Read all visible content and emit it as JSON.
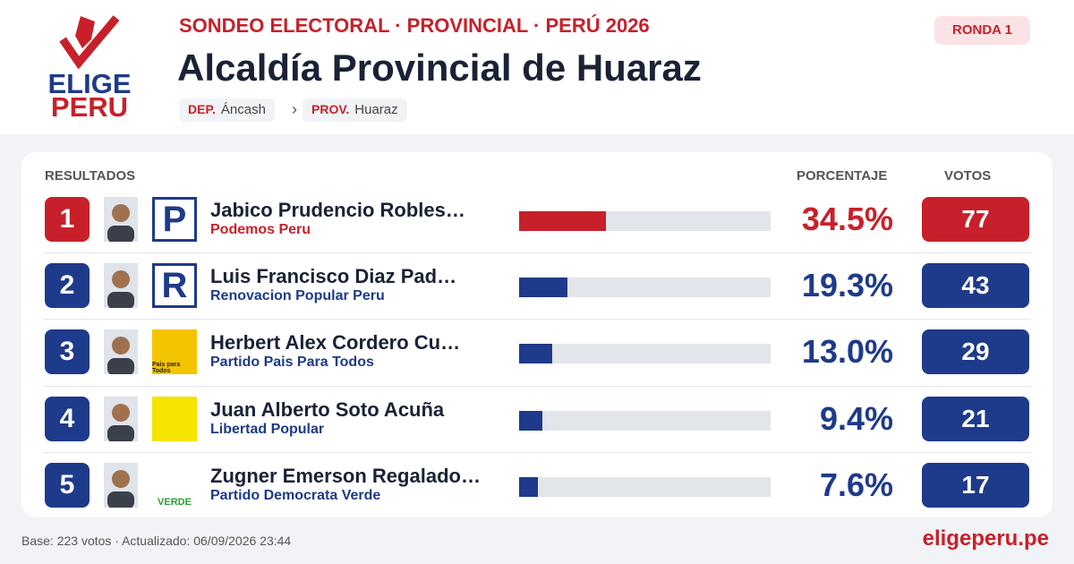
{
  "header": {
    "kicker": "SONDEO ELECTORAL · PROVINCIAL · PERÚ 2026",
    "title": "Alcaldía Provincial de Huaraz",
    "round": "RONDA 1",
    "breadcrumb": [
      {
        "key": "DEP.",
        "value": "Áncash"
      },
      {
        "key": "PROV.",
        "value": "Huaraz"
      }
    ],
    "separator": "›"
  },
  "logo": {
    "line1": "ELIGE",
    "line2": "PERU"
  },
  "results": {
    "heading": "RESULTADOS",
    "percent_heading": "PORCENTAJE",
    "votes_heading": "VOTOS",
    "rows": [
      {
        "rank": "1",
        "name": "Jabico Prudencio Robles…",
        "party": "Podemos Peru",
        "party_logo": "P",
        "percent": 34.5,
        "percent_label": "34.5%",
        "votes": "77",
        "color": "#c8202a"
      },
      {
        "rank": "2",
        "name": "Luis Francisco Diaz Pad…",
        "party": "Renovacion Popular Peru",
        "party_logo": "R",
        "percent": 19.3,
        "percent_label": "19.3%",
        "votes": "43",
        "color": "#1e3a8a"
      },
      {
        "rank": "3",
        "name": "Herbert Alex Cordero Cu…",
        "party": "Partido Pais Para Todos",
        "party_logo": "Pais para Todos",
        "percent": 13.0,
        "percent_label": "13.0%",
        "votes": "29",
        "color": "#1e3a8a"
      },
      {
        "rank": "4",
        "name": "Juan Alberto Soto Acuña",
        "party": "Libertad Popular",
        "party_logo": "",
        "percent": 9.4,
        "percent_label": "9.4%",
        "votes": "21",
        "color": "#1e3a8a"
      },
      {
        "rank": "5",
        "name": "Zugner Emerson Regalado…",
        "party": "Partido Democrata Verde",
        "party_logo": "VERDE",
        "percent": 7.6,
        "percent_label": "7.6%",
        "votes": "17",
        "color": "#1e3a8a"
      }
    ]
  },
  "footer": {
    "note": "Base: 223 votos · Actualizado: 06/09/2026 23:44",
    "site": "eligeperu.pe"
  }
}
